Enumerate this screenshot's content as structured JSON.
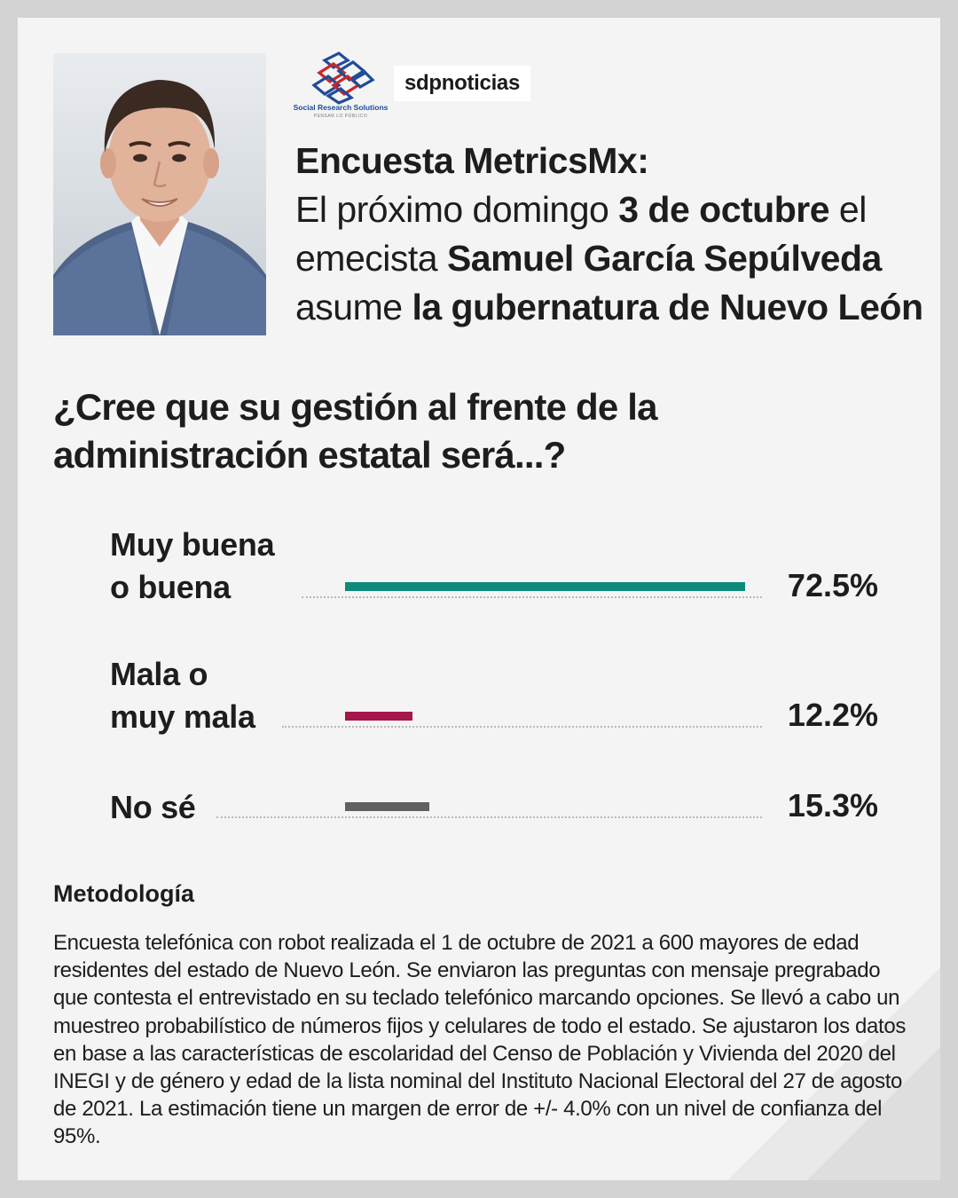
{
  "header": {
    "photo_label": "Samuel García Sepúlveda",
    "srs_logo_name": "Social Research Solutions",
    "srs_logo_tagline": "PENSAR LO PÚBLICO",
    "sdp_logo_text": "sdpnoticias"
  },
  "headline": {
    "line1": "Encuesta MetricsMx:",
    "line2_a": "El próximo domingo ",
    "line2_b": "3 de octubre",
    "line2_c": " el",
    "line3_a": "emecista ",
    "line3_b": "Samuel García Sepúlveda",
    "line4_a": "asume ",
    "line4_b": "la gubernatura de Nuevo León"
  },
  "question": "¿Cree que su gestión al frente de la administración estatal será...?",
  "chart_data": {
    "type": "bar",
    "orientation": "horizontal",
    "categories": [
      "Muy buena\no buena",
      "Mala o\nmuy mala",
      "No sé"
    ],
    "values": [
      72.5,
      12.2,
      15.3
    ],
    "value_labels": [
      "72.5%",
      "12.2%",
      "15.3%"
    ],
    "colors": [
      "#0e8a7c",
      "#a5164a",
      "#616161"
    ],
    "xlim": [
      0,
      72.5
    ],
    "unit": "%",
    "grid": false,
    "legend": "none"
  },
  "methodology": {
    "title": "Metodología",
    "body": "Encuesta telefónica con robot realizada el 1 de octubre de 2021 a 600 mayores de edad residentes del estado de Nuevo León. Se enviaron las preguntas con mensaje pregrabado que contesta el entrevistado en su teclado telefónico marcando opciones. Se llevó a cabo un muestreo probabilístico de números fijos y celulares de todo el estado. Se ajustaron los datos en base a las características de escolaridad del Censo de Población y Vivienda del 2020 del INEGI y de género y edad de la lista nominal del Instituto Nacional Electoral del 27 de agosto de 2021. La estimación tiene un margen de error de +/- 4.0% con un nivel de confianza del 95%."
  }
}
